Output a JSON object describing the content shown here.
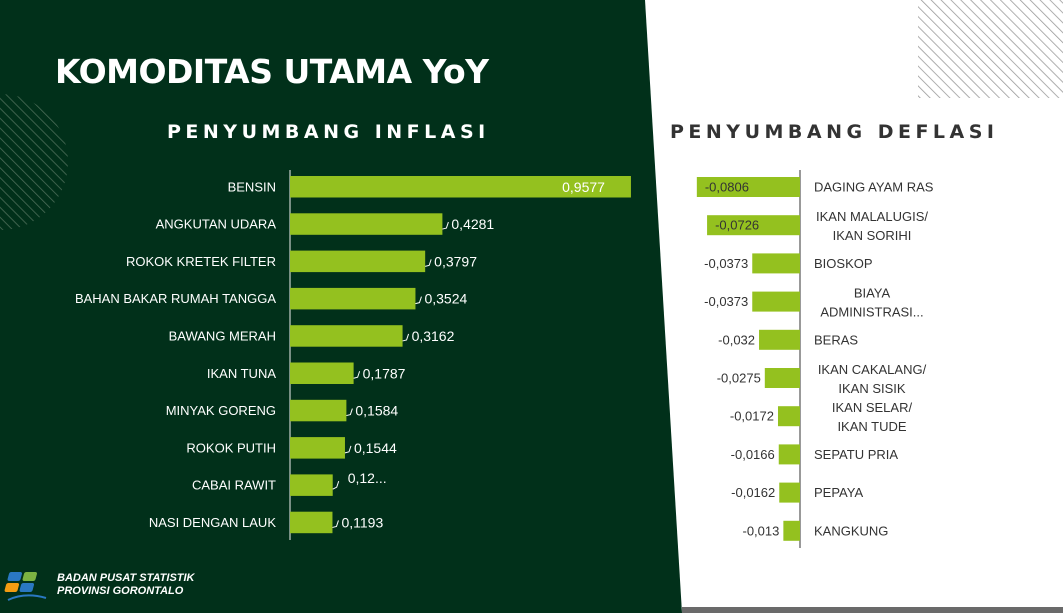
{
  "page": {
    "title": "KOMODITAS UTAMA YoY",
    "colors": {
      "panel": "#01301a",
      "bar": "#94c11f",
      "text_dark": "#333333",
      "text_light": "#ffffff"
    }
  },
  "chart_data": [
    {
      "type": "bar",
      "orientation": "horizontal",
      "title": "PENYUMBANG INFLASI",
      "categories": [
        "BENSIN",
        "ANGKUTAN UDARA",
        "ROKOK KRETEK FILTER",
        "BAHAN BAKAR RUMAH TANGGA",
        "BAWANG MERAH",
        "IKAN TUNA",
        "MINYAK GORENG",
        "ROKOK PUTIH",
        "CABAI RAWIT",
        "NASI DENGAN LAUK"
      ],
      "values": [
        0.9577,
        0.4281,
        0.3797,
        0.3524,
        0.3162,
        0.1787,
        0.1584,
        0.1544,
        0.12,
        0.1193
      ],
      "value_labels": [
        "0,9577",
        "0,4281",
        "0,3797",
        "0,3524",
        "0,3162",
        "0,1787",
        "0,1584",
        "0,1544",
        "0,12...",
        "0,1193"
      ],
      "xlim": [
        0,
        1
      ]
    },
    {
      "type": "bar",
      "orientation": "horizontal",
      "title": "PENYUMBANG DEFLASI",
      "categories": [
        "DAGING AYAM RAS",
        "IKAN MALALUGIS/ IKAN SORIHI",
        "BIOSKOP",
        "BIAYA ADMINISTRASI...",
        "BERAS",
        "IKAN CAKALANG/ IKAN SISIK",
        "IKAN SELAR/ IKAN TUDE",
        "SEPATU PRIA",
        "PEPAYA",
        "KANGKUNG"
      ],
      "values": [
        -0.0806,
        -0.0726,
        -0.0373,
        -0.0373,
        -0.032,
        -0.0275,
        -0.0172,
        -0.0166,
        -0.0162,
        -0.013
      ],
      "value_labels": [
        "-0,0806",
        "-0,0726",
        "-0,0373",
        "-0,0373",
        "-0,032",
        "-0,0275",
        "-0,0172",
        "-0,0166",
        "-0,0162",
        "-0,013"
      ],
      "xlim": [
        -0.1,
        0
      ]
    }
  ],
  "footer": {
    "org_line1": "BADAN PUSAT STATISTIK",
    "org_line2": "PROVINSI GORONTALO"
  }
}
